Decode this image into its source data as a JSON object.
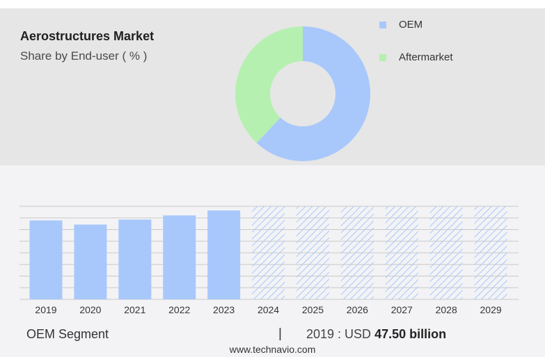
{
  "header": {
    "title": "Aerostructures Market",
    "subtitle": "Share by End-user ( % )"
  },
  "chart_data": [
    {
      "type": "pie",
      "title": "Aerostructures Market",
      "subtitle": "Share by End-user ( % )",
      "donut": true,
      "legend_position": "right",
      "slices": [
        {
          "name": "OEM",
          "value": 62,
          "color": "#a8c8fb"
        },
        {
          "name": "Aftermarket",
          "value": 38,
          "color": "#b6f0b0"
        }
      ]
    },
    {
      "type": "bar",
      "series_name": "OEM Segment",
      "categories": [
        "2019",
        "2020",
        "2021",
        "2022",
        "2023",
        "2024",
        "2025",
        "2026",
        "2027",
        "2028",
        "2029"
      ],
      "values": [
        47.5,
        45.0,
        48.0,
        50.5,
        53.5,
        null,
        null,
        null,
        null,
        null,
        null
      ],
      "forecast_from": "2024",
      "ylim": [
        0,
        56
      ],
      "grid": true,
      "bar_color": "#a8c8fb",
      "forecast_pattern_color": "#a8c8fb"
    }
  ],
  "footer": {
    "segment_label": "OEM Segment",
    "separator": "|",
    "value_prefix": "2019 : USD",
    "value_bold": "47.50 billion",
    "website": "www.technavio.com"
  }
}
